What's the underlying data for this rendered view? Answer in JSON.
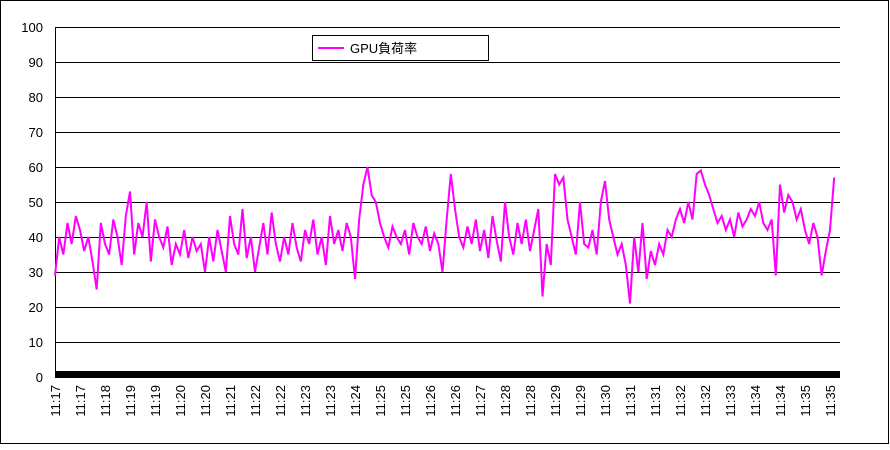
{
  "chart_data": {
    "type": "line",
    "categories": [
      "11:17",
      null,
      null,
      null,
      null,
      null,
      "11:17",
      null,
      null,
      null,
      null,
      null,
      "11:18",
      null,
      null,
      null,
      null,
      null,
      "11:19",
      null,
      null,
      null,
      null,
      null,
      "11:19",
      null,
      null,
      null,
      null,
      null,
      "11:20",
      null,
      null,
      null,
      null,
      null,
      "11:20",
      null,
      null,
      null,
      null,
      null,
      "11:21",
      null,
      null,
      null,
      null,
      null,
      "11:22",
      null,
      null,
      null,
      null,
      null,
      "11:22",
      null,
      null,
      null,
      null,
      null,
      "11:23",
      null,
      null,
      null,
      null,
      null,
      "11:23",
      null,
      null,
      null,
      null,
      null,
      "11:24",
      null,
      null,
      null,
      null,
      null,
      "11:25",
      null,
      null,
      null,
      null,
      null,
      "11:25",
      null,
      null,
      null,
      null,
      null,
      "11:26",
      null,
      null,
      null,
      null,
      null,
      "11:26",
      null,
      null,
      null,
      null,
      null,
      "11:27",
      null,
      null,
      null,
      null,
      null,
      "11:28",
      null,
      null,
      null,
      null,
      null,
      "11:28",
      null,
      null,
      null,
      null,
      null,
      "11:29",
      null,
      null,
      null,
      null,
      null,
      "11:29",
      null,
      null,
      null,
      null,
      null,
      "11:30",
      null,
      null,
      null,
      null,
      null,
      "11:31",
      null,
      null,
      null,
      null,
      null,
      "11:31",
      null,
      null,
      null,
      null,
      null,
      "11:32",
      null,
      null,
      null,
      null,
      null,
      "11:32",
      null,
      null,
      null,
      null,
      null,
      "11:33",
      null,
      null,
      null,
      null,
      null,
      "11:34",
      null,
      null,
      null,
      null,
      null,
      "11:34",
      null,
      null,
      null,
      null,
      null,
      "11:35",
      null,
      null,
      null,
      null,
      null,
      "11:35",
      null
    ],
    "series": [
      {
        "name": "GPU負荷率",
        "color": "#ff00ff",
        "values": [
          29,
          40,
          35,
          44,
          38,
          46,
          42,
          36,
          40,
          33,
          25,
          44,
          38,
          35,
          45,
          40,
          32,
          46,
          53,
          35,
          44,
          40,
          50,
          33,
          45,
          40,
          37,
          43,
          32,
          38,
          35,
          42,
          34,
          40,
          36,
          38,
          30,
          40,
          33,
          42,
          36,
          30,
          46,
          38,
          35,
          48,
          34,
          40,
          30,
          37,
          44,
          35,
          47,
          38,
          33,
          40,
          35,
          44,
          37,
          33,
          42,
          38,
          45,
          35,
          40,
          32,
          46,
          38,
          42,
          36,
          44,
          40,
          28,
          45,
          55,
          60,
          52,
          50,
          44,
          40,
          37,
          43,
          40,
          38,
          42,
          35,
          44,
          40,
          38,
          43,
          36,
          41,
          38,
          30,
          45,
          58,
          48,
          40,
          37,
          43,
          38,
          45,
          36,
          42,
          34,
          46,
          39,
          33,
          50,
          40,
          35,
          44,
          38,
          45,
          36,
          42,
          48,
          23,
          38,
          32,
          58,
          55,
          57,
          45,
          40,
          35,
          50,
          38,
          37,
          42,
          35,
          50,
          56,
          45,
          40,
          35,
          38,
          32,
          21,
          40,
          30,
          44,
          28,
          36,
          32,
          38,
          35,
          42,
          40,
          45,
          48,
          44,
          50,
          45,
          58,
          59,
          55,
          52,
          48,
          44,
          46,
          42,
          45,
          40,
          47,
          43,
          45,
          48,
          46,
          50,
          44,
          42,
          45,
          29,
          55,
          47,
          52,
          50,
          45,
          48,
          42,
          38,
          44,
          40,
          29,
          36,
          42,
          57
        ]
      }
    ],
    "ylim": [
      0,
      100
    ],
    "yticks": [
      0,
      10,
      20,
      30,
      40,
      50,
      60,
      70,
      80,
      90,
      100
    ],
    "grid": true
  }
}
